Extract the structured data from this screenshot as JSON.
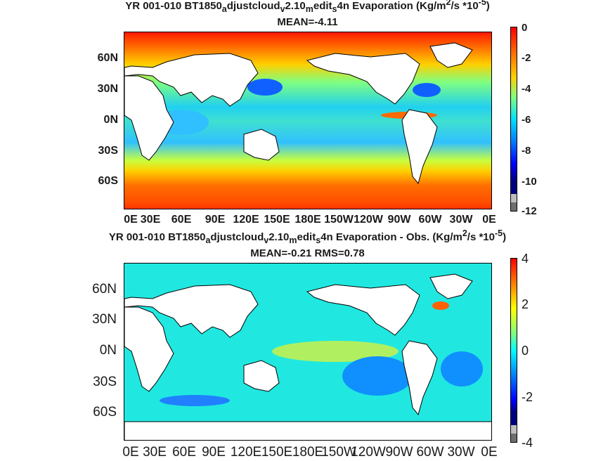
{
  "panel1": {
    "title_a": "YR 001-010 BT1850",
    "title_sub_a": "a",
    "title_b": "djustcloud",
    "title_sub_v": "v",
    "title_c": "2.10",
    "title_sub_m": "m",
    "title_d": "edit",
    "title_sub_s": "s",
    "title_e": "4n  Evaporation (Kg/m",
    "title_sup_2": "2",
    "title_f": "/s *10",
    "title_sup_5": "-5",
    "title_g": ")",
    "stats": "MEAN=-4.11",
    "lat_labels": [
      "60N",
      "30N",
      "0N",
      "30S",
      "60S"
    ],
    "lon_labels": [
      "0E",
      "30E",
      "60E",
      "90E",
      "120E",
      "150E",
      "180E",
      "150W",
      "120W",
      "90W",
      "60W",
      "30W",
      "0E"
    ],
    "colorbar_ticks": [
      "0",
      "-2",
      "-4",
      "-6",
      "-8",
      "-10",
      "-12"
    ]
  },
  "panel2": {
    "title_a": "YR 001-010 BT1850",
    "title_sub_a": "a",
    "title_b": "djustcloud",
    "title_sub_v": "v",
    "title_c": "2.10",
    "title_sub_m": "m",
    "title_d": "edit",
    "title_sub_s": "s",
    "title_e": "4n Evaporation - Obs. (Kg/m",
    "title_sup_2": "2",
    "title_f": "/s *10",
    "title_sup_5": "-5",
    "title_g": ")",
    "stats": "MEAN=-0.21   RMS=0.78",
    "lat_labels": [
      "60N",
      "30N",
      "0N",
      "30S",
      "60S"
    ],
    "lon_labels": [
      "0E",
      "30E",
      "60E",
      "90E",
      "120E",
      "150E",
      "180E",
      "150W",
      "120W",
      "90W",
      "60W",
      "30W",
      "0E"
    ],
    "colorbar_ticks": [
      "4",
      "2",
      "0",
      "-2",
      "-4"
    ]
  },
  "colors": {
    "land": "#ffffff",
    "colormap": [
      "#7f0000",
      "#ff0000",
      "#ff7f00",
      "#ffff00",
      "#7fff7f",
      "#00ffff",
      "#007fff",
      "#0000ff",
      "#00007f"
    ],
    "under": "#6e6e6e",
    "over_gray": "#bdbdbd"
  }
}
